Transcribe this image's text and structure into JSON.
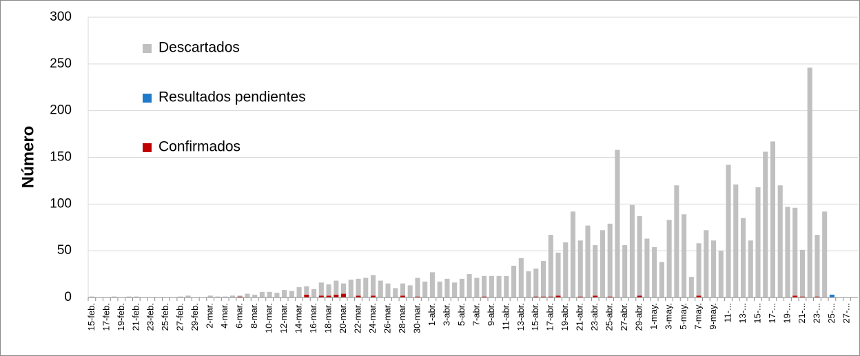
{
  "chart_data": {
    "type": "stacked_bar",
    "y_label": "Número",
    "categories": [
      "15-feb.",
      null,
      "17-feb.",
      null,
      "19-feb.",
      null,
      "21-feb.",
      null,
      "23-feb.",
      null,
      "25-feb.",
      null,
      "27-feb.",
      null,
      "29-feb.",
      null,
      "2-mar.",
      null,
      "4-mar.",
      null,
      "6-mar.",
      null,
      "8-mar.",
      null,
      "10-mar.",
      null,
      "12-mar.",
      null,
      "14-mar.",
      null,
      "16-mar.",
      null,
      "18-mar.",
      null,
      "20-mar.",
      null,
      "22-mar.",
      null,
      "24-mar.",
      null,
      "26-mar.",
      null,
      "28-mar.",
      null,
      "30-mar.",
      null,
      "1-abr.",
      null,
      "3-abr.",
      null,
      "5-abr.",
      null,
      "7-abr.",
      null,
      "9-abr.",
      null,
      "11-abr.",
      null,
      "13-abr.",
      null,
      "15-abr.",
      null,
      "17-abr.",
      null,
      "19-abr.",
      null,
      "21-abr.",
      null,
      "23-abr.",
      null,
      "25-abr.",
      null,
      "27-abr.",
      null,
      "29-abr.",
      null,
      "1-may.",
      null,
      "3-may.",
      null,
      "5-may.",
      null,
      "7-may.",
      null,
      "9-may.",
      null,
      "11-...",
      null,
      "13-...",
      null,
      "15-...",
      null,
      "17-...",
      null,
      "19-...",
      null,
      "21-...",
      null,
      "23-...",
      null,
      "25-...",
      null,
      "27-...",
      null
    ],
    "series": [
      {
        "name": "Descartados",
        "color": "#c0c0c0",
        "values": [
          1,
          0,
          0,
          1,
          0,
          1,
          1,
          0,
          0,
          0,
          0,
          0,
          1,
          2,
          0,
          0,
          2,
          1,
          1,
          2,
          1,
          4,
          3,
          6,
          6,
          5,
          8,
          7,
          11,
          9,
          9,
          14,
          12,
          15,
          11,
          19,
          18,
          21,
          22,
          18,
          15,
          10,
          13,
          13,
          20,
          17,
          27,
          17,
          20,
          16,
          20,
          25,
          21,
          22,
          23,
          23,
          23,
          34,
          42,
          28,
          30,
          38,
          66,
          46,
          59,
          92,
          60,
          77,
          54,
          72,
          78,
          158,
          56,
          99,
          85,
          63,
          54,
          38,
          83,
          120,
          89,
          22,
          56,
          72,
          61,
          50,
          142,
          121,
          85,
          61,
          118,
          156,
          167,
          120,
          97,
          94,
          50,
          246,
          66,
          92,
          0,
          0,
          0,
          0
        ]
      },
      {
        "name": "Resultados pendientes",
        "color": "#1f7bc9",
        "values": [
          0,
          0,
          0,
          0,
          0,
          0,
          0,
          0,
          0,
          0,
          0,
          0,
          0,
          0,
          0,
          0,
          0,
          0,
          0,
          0,
          0,
          0,
          0,
          0,
          0,
          0,
          0,
          0,
          0,
          0,
          0,
          0,
          0,
          0,
          0,
          0,
          0,
          0,
          0,
          0,
          0,
          0,
          0,
          0,
          0,
          0,
          0,
          0,
          0,
          0,
          0,
          0,
          0,
          0,
          0,
          0,
          0,
          0,
          0,
          0,
          0,
          0,
          0,
          0,
          0,
          0,
          0,
          0,
          0,
          0,
          0,
          0,
          0,
          0,
          0,
          0,
          0,
          0,
          0,
          0,
          0,
          0,
          0,
          0,
          0,
          0,
          0,
          0,
          0,
          0,
          0,
          0,
          0,
          0,
          0,
          0,
          0,
          0,
          0,
          0,
          3,
          0,
          0,
          0
        ]
      },
      {
        "name": "Confirmados",
        "color": "#c00000",
        "values": [
          0,
          0,
          0,
          0,
          0,
          0,
          0,
          0,
          0,
          0,
          0,
          0,
          0,
          0,
          0,
          0,
          0,
          0,
          0,
          0,
          1,
          0,
          0,
          0,
          0,
          0,
          0,
          0,
          0,
          3,
          0,
          2,
          2,
          3,
          4,
          0,
          2,
          0,
          2,
          0,
          0,
          0,
          2,
          0,
          1,
          0,
          0,
          0,
          0,
          0,
          0,
          0,
          0,
          1,
          0,
          0,
          0,
          0,
          0,
          0,
          1,
          1,
          1,
          2,
          0,
          0,
          1,
          0,
          2,
          0,
          1,
          0,
          0,
          0,
          2,
          0,
          0,
          0,
          0,
          0,
          0,
          0,
          2,
          0,
          0,
          0,
          0,
          0,
          0,
          0,
          0,
          0,
          0,
          0,
          0,
          2,
          1,
          0,
          1,
          0,
          0,
          0,
          0,
          0
        ]
      }
    ],
    "ylim": [
      0,
      300
    ],
    "yticks": [
      0,
      50,
      100,
      150,
      200,
      250,
      300
    ],
    "grid": true
  }
}
